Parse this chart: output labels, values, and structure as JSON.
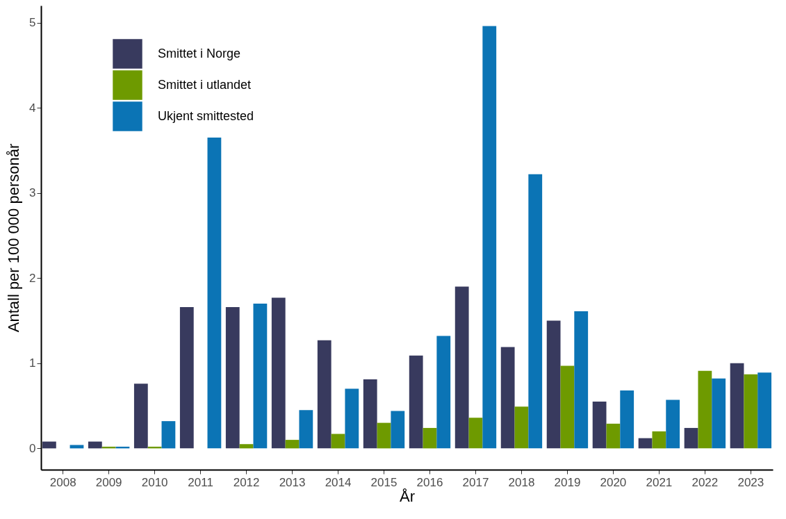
{
  "chart_data": {
    "type": "bar",
    "xlabel": "År",
    "ylabel": "Antall per 100 000 personår",
    "categories": [
      "2008",
      "2009",
      "2010",
      "2011",
      "2012",
      "2013",
      "2014",
      "2015",
      "2016",
      "2017",
      "2018",
      "2019",
      "2020",
      "2021",
      "2022",
      "2023"
    ],
    "series": [
      {
        "name": "Smittet i Norge",
        "color": "#383a5e",
        "values": [
          0.08,
          0.08,
          0.76,
          1.66,
          1.66,
          1.77,
          1.27,
          0.81,
          1.09,
          1.9,
          1.19,
          1.5,
          0.55,
          0.12,
          0.24,
          1.0
        ]
      },
      {
        "name": "Smittet i utlandet",
        "color": "#6e9a00",
        "values": [
          0,
          0.02,
          0.02,
          0,
          0.05,
          0.1,
          0.17,
          0.3,
          0.24,
          0.36,
          0.49,
          0.97,
          0.29,
          0.2,
          0.91,
          0.87
        ]
      },
      {
        "name": "Ukjent smittested",
        "color": "#0b74b5",
        "values": [
          0.04,
          0.02,
          0.32,
          3.65,
          1.7,
          0.45,
          0.7,
          0.44,
          1.32,
          4.96,
          3.22,
          1.61,
          0.68,
          0.57,
          0.82,
          0.89
        ]
      }
    ],
    "ylim": [
      -0.25,
      5.2
    ],
    "yticks": [
      0,
      1,
      2,
      3,
      4,
      5
    ],
    "grid": false,
    "legend": "top left"
  }
}
